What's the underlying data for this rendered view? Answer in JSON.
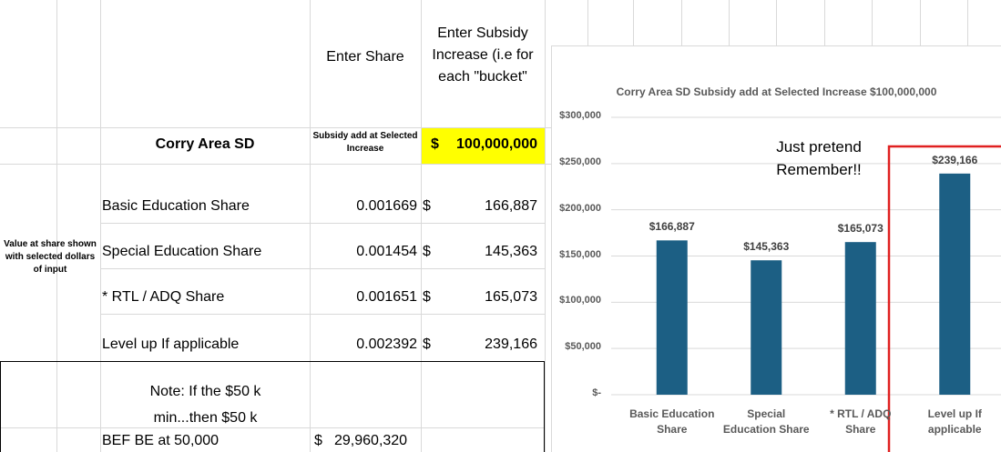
{
  "sheet": {
    "header": {
      "share": "Enter Share",
      "increase": "Enter Subsidy Increase (i.e for each \"bucket\""
    },
    "district": "Corry Area SD",
    "subsidy_label": "Subsidy add  at Selected Increase",
    "subsidy_currency": "$",
    "subsidy_amount": "100,000,000",
    "side_note": "Value at share shown with selected dollars of input",
    "rows": [
      {
        "label": "Basic Education Share",
        "share": "0.001669",
        "currency": "$",
        "amount": "166,887"
      },
      {
        "label": "Special Education Share",
        "share": "0.001454",
        "currency": "$",
        "amount": "145,363"
      },
      {
        "label": "* RTL / ADQ Share",
        "share": "0.001651",
        "currency": "$",
        "amount": "165,073"
      },
      {
        "label": "Level up If applicable",
        "share": "0.002392",
        "currency": "$",
        "amount": "239,166"
      }
    ],
    "note": "Note: If the $50 k min...then $50 k",
    "bef": {
      "label": "BEF BE at 50,000",
      "currency": "$",
      "amount": "29,960,320"
    }
  },
  "chart_data": {
    "type": "bar",
    "title": "Corry Area SD Subsidy add  at Selected Increase  $100,000,000",
    "categories": [
      "Basic Education Share",
      "Special Education Share",
      "* RTL / ADQ Share",
      "Level up If applicable"
    ],
    "values": [
      166887,
      145363,
      165073,
      239166
    ],
    "value_labels": [
      "$166,887",
      "$145,363",
      "$165,073",
      "$239,166"
    ],
    "color": "#1c5f84",
    "ylim": [
      0,
      300000
    ],
    "yticks": [
      {
        "value": 0,
        "label": "$-"
      },
      {
        "value": 50000,
        "label": "$50,000"
      },
      {
        "value": 100000,
        "label": "$100,000"
      },
      {
        "value": 150000,
        "label": "$150,000"
      },
      {
        "value": 200000,
        "label": "$200,000"
      },
      {
        "value": 250000,
        "label": "$250,000"
      },
      {
        "value": 300000,
        "label": "$300,000"
      }
    ],
    "grid": true,
    "annotation": "Just pretend Remember!!"
  }
}
